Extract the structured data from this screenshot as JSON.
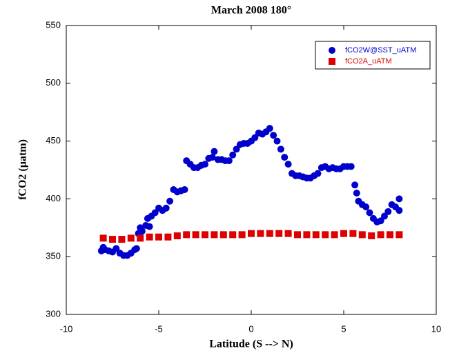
{
  "chart_data": {
    "type": "scatter",
    "title": "March 2008 180°",
    "xlabel": "Latitude (S --> N)",
    "ylabel": "fCO2 (µatm)",
    "xlim": [
      -10,
      10
    ],
    "ylim": [
      300,
      550
    ],
    "xticks": [
      -10,
      -5,
      0,
      5,
      10
    ],
    "yticks": [
      300,
      350,
      400,
      450,
      500,
      550
    ],
    "legend": "upper right",
    "series": [
      {
        "name": "fCO2W@SST_uATM",
        "color": "#0000cc",
        "marker": "circle",
        "x": [
          -8.1,
          -8,
          -7.9,
          -7.7,
          -7.5,
          -7.3,
          -7.1,
          -6.9,
          -6.7,
          -6.5,
          -6.3,
          -6.2,
          -6.1,
          -6.0,
          -5.9,
          -5.7,
          -5.6,
          -5.5,
          -5.4,
          -5.2,
          -5.0,
          -4.8,
          -4.6,
          -4.4,
          -4.2,
          -4.0,
          -3.8,
          -3.6,
          -3.5,
          -3.3,
          -3.1,
          -2.9,
          -2.7,
          -2.5,
          -2.3,
          -2.1,
          -2.0,
          -1.8,
          -1.6,
          -1.4,
          -1.2,
          -1.0,
          -0.8,
          -0.6,
          -0.4,
          -0.2,
          0,
          0.2,
          0.4,
          0.6,
          0.8,
          1.0,
          1.2,
          1.4,
          1.6,
          1.8,
          2.0,
          2.2,
          2.4,
          2.6,
          2.8,
          3.0,
          3.2,
          3.4,
          3.6,
          3.8,
          4.0,
          4.2,
          4.4,
          4.6,
          4.8,
          5.0,
          5.2,
          5.4,
          5.6,
          5.7,
          5.8,
          6.0,
          6.2,
          6.4,
          6.6,
          6.8,
          7.0,
          7.2,
          7.4,
          7.6,
          7.8,
          8.0,
          8.0
        ],
        "values": [
          355,
          358,
          356,
          355,
          354,
          357,
          353,
          351,
          351,
          353,
          356,
          357,
          370,
          375,
          372,
          377,
          383,
          376,
          385,
          388,
          392,
          390,
          392,
          398,
          408,
          406,
          407,
          408,
          433,
          430,
          427,
          427,
          429,
          430,
          435,
          436,
          441,
          434,
          434,
          433,
          433,
          438,
          443,
          447,
          448,
          448,
          450,
          453,
          457,
          456,
          458,
          461,
          455,
          450,
          443,
          436,
          430,
          422,
          420,
          420,
          419,
          418,
          418,
          420,
          422,
          427,
          428,
          426,
          427,
          426,
          426,
          428,
          428,
          428,
          412,
          405,
          398,
          395,
          393,
          388,
          383,
          380,
          381,
          385,
          389,
          395,
          393,
          400,
          390
        ]
      },
      {
        "name": "fCO2A_uATM",
        "color": "#dd0000",
        "marker": "square",
        "x": [
          -8,
          -7.5,
          -7,
          -6.5,
          -6,
          -5.5,
          -5,
          -4.5,
          -4,
          -3.5,
          -3,
          -2.5,
          -2,
          -1.5,
          -1,
          -0.5,
          0,
          0.5,
          1,
          1.5,
          2,
          2.5,
          3,
          3.5,
          4,
          4.5,
          5,
          5.5,
          6,
          6.5,
          7,
          7.5,
          8
        ],
        "values": [
          366,
          365,
          365,
          366,
          366,
          367,
          367,
          367,
          368,
          369,
          369,
          369,
          369,
          369,
          369,
          369,
          370,
          370,
          370,
          370,
          370,
          369,
          369,
          369,
          369,
          369,
          370,
          370,
          369,
          368,
          369,
          369,
          369
        ]
      }
    ]
  }
}
